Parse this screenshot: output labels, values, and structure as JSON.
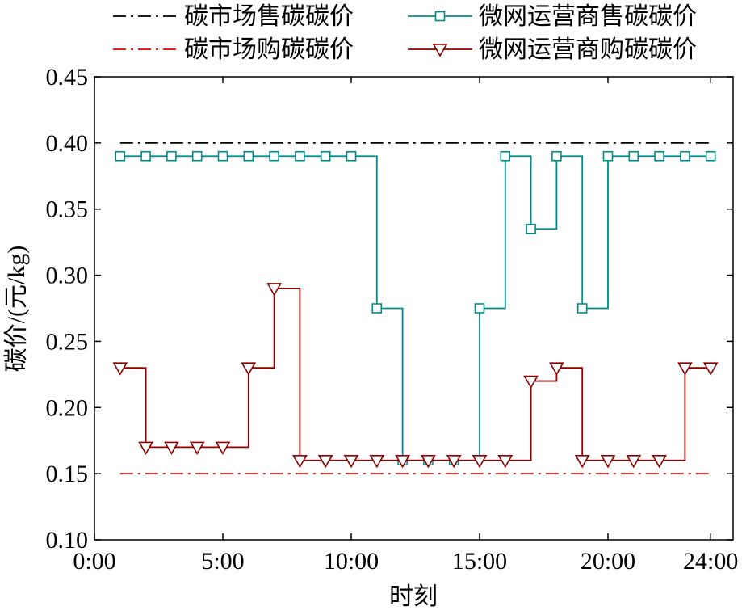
{
  "chart_data": {
    "type": "line",
    "xlabel": "时刻",
    "ylabel": "碳价/(元/kg)",
    "xlim": [
      0,
      25
    ],
    "ylim": [
      0.1,
      0.45
    ],
    "x_ticks": [
      0,
      5,
      10,
      15,
      20,
      24
    ],
    "x_tick_labels": [
      "0:00",
      "5:00",
      "10:00",
      "15:00",
      "20:00",
      "24:00"
    ],
    "y_ticks": [
      0.1,
      0.15,
      0.2,
      0.25,
      0.3,
      0.35,
      0.4,
      0.45
    ],
    "y_tick_labels": [
      "0.10",
      "0.15",
      "0.20",
      "0.25",
      "0.30",
      "0.35",
      "0.40",
      "0.45"
    ],
    "grid": false,
    "legend_position": "top",
    "series": [
      {
        "name": "碳市场售碳碳价",
        "style": "dashdot",
        "marker": "none",
        "color": "#000000",
        "x": [
          1,
          24
        ],
        "values": [
          0.4,
          0.4
        ]
      },
      {
        "name": "碳市场购碳碳价",
        "style": "dashdot",
        "marker": "none",
        "color": "#e00000",
        "x": [
          1,
          24
        ],
        "values": [
          0.15,
          0.15
        ]
      },
      {
        "name": "微网运营商售碳碳价",
        "style": "step",
        "marker": "square",
        "color": "#008b8b",
        "x": [
          1,
          2,
          3,
          4,
          5,
          6,
          7,
          8,
          9,
          10,
          11,
          12,
          13,
          14,
          15,
          16,
          17,
          18,
          19,
          20,
          21,
          22,
          23,
          24
        ],
        "values": [
          0.39,
          0.39,
          0.39,
          0.39,
          0.39,
          0.39,
          0.39,
          0.39,
          0.39,
          0.39,
          0.275,
          0.16,
          0.16,
          0.16,
          0.275,
          0.39,
          0.335,
          0.39,
          0.275,
          0.39,
          0.39,
          0.39,
          0.39,
          0.39
        ]
      },
      {
        "name": "微网运营商购碳碳价",
        "style": "step",
        "marker": "triangle-down",
        "color": "#8b0000",
        "x": [
          1,
          2,
          3,
          4,
          5,
          6,
          7,
          8,
          9,
          10,
          11,
          12,
          13,
          14,
          15,
          16,
          17,
          18,
          19,
          20,
          21,
          22,
          23,
          24
        ],
        "values": [
          0.23,
          0.17,
          0.17,
          0.17,
          0.17,
          0.23,
          0.29,
          0.16,
          0.16,
          0.16,
          0.16,
          0.16,
          0.16,
          0.16,
          0.16,
          0.16,
          0.22,
          0.23,
          0.16,
          0.16,
          0.16,
          0.16,
          0.23,
          0.23
        ]
      }
    ]
  }
}
